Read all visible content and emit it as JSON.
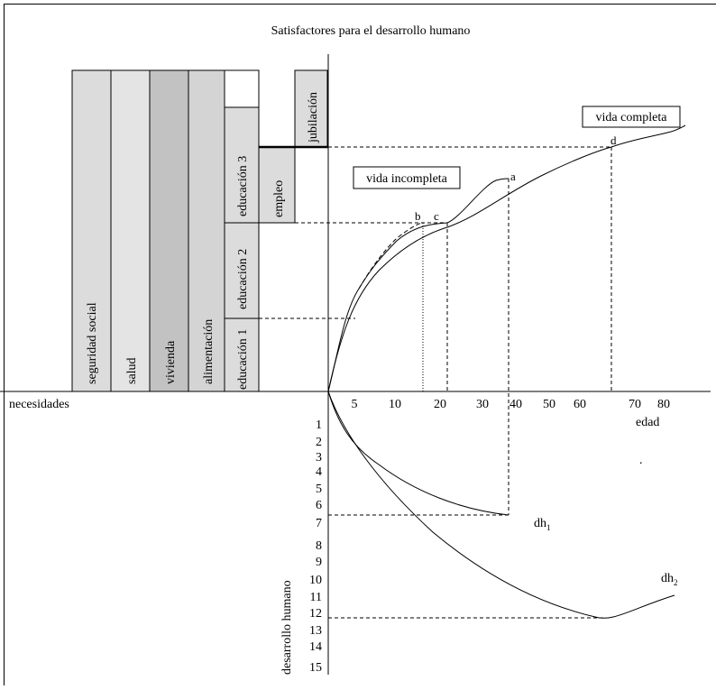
{
  "title": "Satisfactores para el desarrollo humano",
  "axes": {
    "left_label": "necesidades",
    "x_label": "edad",
    "y_label": "desarrollo humano",
    "x_ticks": [
      "5",
      "10",
      "20",
      "30",
      "40",
      "50",
      "60",
      "70",
      "80"
    ],
    "y_ticks": [
      "1",
      "2",
      "3",
      "4",
      "5",
      "6",
      "7",
      "8",
      "9",
      "10",
      "11",
      "12",
      "13",
      "14",
      "15"
    ]
  },
  "bars": {
    "seguridad": "seguridad social",
    "salud": "salud",
    "vivienda": "vivienda",
    "alimentacion": "alimentación",
    "edu1": "educación 1",
    "edu2": "educación 2",
    "edu3": "educación 3",
    "empleo": "empleo",
    "jubilacion": "jubilación"
  },
  "boxes": {
    "vida_incompleta": "vida incompleta",
    "vida_completa": "vida completa"
  },
  "points": {
    "a": "a",
    "b": "b",
    "c": "c",
    "d": "d"
  },
  "curves": {
    "dh1_base": "dh",
    "dh1_sub": "1",
    "dh2_base": "dh",
    "dh2_sub": "2"
  },
  "dot": ".",
  "colors": {
    "light_gray": "#dcdcdc",
    "mid_gray": "#c2c2c2",
    "ink": "#000000"
  }
}
